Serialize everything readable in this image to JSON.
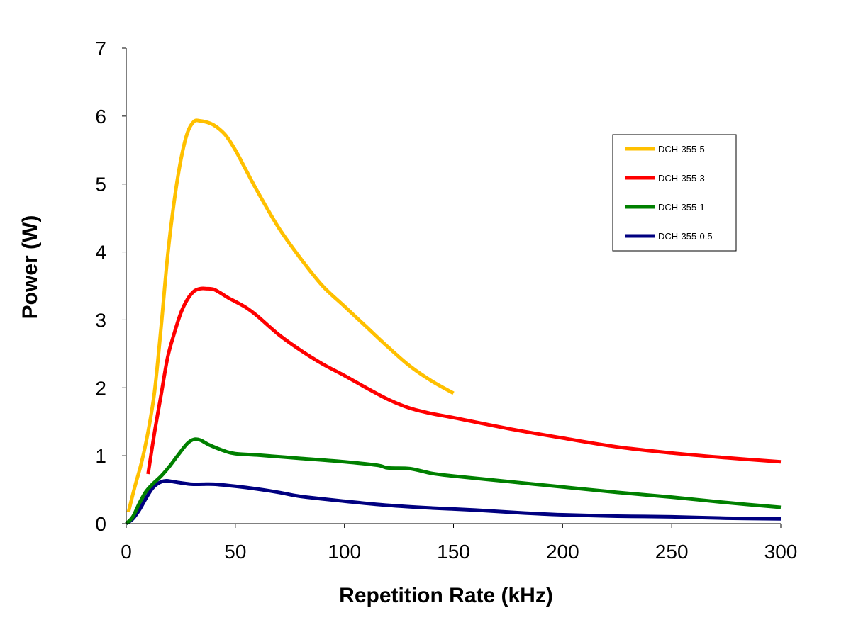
{
  "chart_data": {
    "type": "line",
    "title": "",
    "xlabel": "Repetition Rate (kHz)",
    "ylabel": "Power (W)",
    "xlim": [
      0,
      300
    ],
    "ylim": [
      0,
      7
    ],
    "xticks": [
      0,
      50,
      100,
      150,
      200,
      250,
      300
    ],
    "yticks": [
      0,
      1,
      2,
      3,
      4,
      5,
      6,
      7
    ],
    "grid": false,
    "legend_position": "top-right",
    "series": [
      {
        "name": "DCH-355-5",
        "color": "#FFC000",
        "x": [
          1,
          4,
          7,
          10,
          13,
          16,
          19,
          22,
          25,
          28,
          31,
          34,
          37,
          40,
          43,
          46,
          50,
          55,
          60,
          70,
          80,
          90,
          100,
          110,
          120,
          130,
          140,
          150
        ],
        "y": [
          0.17,
          0.55,
          0.9,
          1.35,
          1.95,
          2.9,
          3.95,
          4.75,
          5.35,
          5.75,
          5.92,
          5.93,
          5.91,
          5.87,
          5.8,
          5.7,
          5.5,
          5.2,
          4.9,
          4.35,
          3.9,
          3.5,
          3.2,
          2.9,
          2.6,
          2.32,
          2.1,
          1.92
        ]
      },
      {
        "name": "DCH-355-3",
        "color": "#FF0000",
        "x": [
          10,
          13,
          16,
          19,
          22,
          25,
          28,
          31,
          34,
          37,
          40,
          43,
          47,
          50,
          55,
          60,
          70,
          80,
          90,
          100,
          110,
          120,
          130,
          140,
          150,
          175,
          200,
          225,
          250,
          275,
          300
        ],
        "y": [
          0.73,
          1.35,
          1.9,
          2.45,
          2.8,
          3.1,
          3.3,
          3.42,
          3.46,
          3.46,
          3.45,
          3.4,
          3.32,
          3.27,
          3.18,
          3.06,
          2.78,
          2.55,
          2.35,
          2.18,
          2.0,
          1.83,
          1.7,
          1.62,
          1.56,
          1.4,
          1.26,
          1.13,
          1.04,
          0.97,
          0.91
        ]
      },
      {
        "name": "DCH-355-1",
        "color": "#008000",
        "x": [
          0,
          3,
          6,
          9,
          12,
          16,
          20,
          24,
          28,
          31,
          34,
          38,
          45,
          50,
          60,
          80,
          100,
          115,
          120,
          130,
          140,
          150,
          175,
          200,
          225,
          250,
          275,
          300
        ],
        "y": [
          0.0,
          0.1,
          0.3,
          0.47,
          0.58,
          0.7,
          0.85,
          1.02,
          1.18,
          1.24,
          1.23,
          1.16,
          1.07,
          1.03,
          1.01,
          0.96,
          0.91,
          0.86,
          0.82,
          0.81,
          0.74,
          0.7,
          0.62,
          0.54,
          0.46,
          0.39,
          0.31,
          0.24
        ]
      },
      {
        "name": "DCH-355-0.5",
        "color": "#000080",
        "x": [
          0,
          3,
          6,
          9,
          12,
          15,
          18,
          21,
          25,
          30,
          35,
          40,
          50,
          60,
          70,
          80,
          100,
          120,
          140,
          160,
          180,
          200,
          225,
          250,
          275,
          300
        ],
        "y": [
          0.0,
          0.07,
          0.2,
          0.37,
          0.52,
          0.6,
          0.63,
          0.62,
          0.6,
          0.58,
          0.58,
          0.58,
          0.55,
          0.51,
          0.46,
          0.4,
          0.33,
          0.27,
          0.23,
          0.2,
          0.16,
          0.13,
          0.11,
          0.1,
          0.08,
          0.07
        ]
      }
    ]
  }
}
